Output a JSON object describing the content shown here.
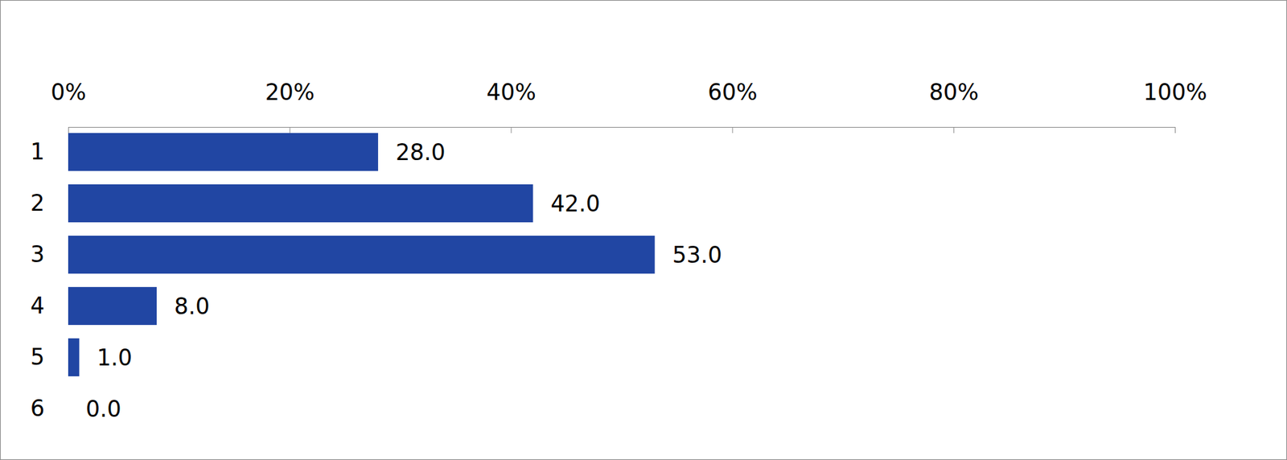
{
  "chart_data": {
    "type": "bar",
    "orientation": "horizontal",
    "categories": [
      "1",
      "2",
      "3",
      "4",
      "5",
      "6"
    ],
    "values": [
      28,
      42,
      53,
      8,
      1,
      0
    ],
    "value_labels": [
      "28.0",
      "42.0",
      "53.0",
      "8.0",
      "1.0",
      "0.0"
    ],
    "data_labels": true,
    "color": "#2146a3",
    "xlim": [
      0,
      100
    ],
    "xticks": [
      {
        "value": 0,
        "label": "0%"
      },
      {
        "value": 20,
        "label": "20%"
      },
      {
        "value": 40,
        "label": "40%"
      },
      {
        "value": 60,
        "label": "60%"
      },
      {
        "value": 80,
        "label": "80%"
      },
      {
        "value": 100,
        "label": "100%"
      }
    ],
    "grid": false
  }
}
